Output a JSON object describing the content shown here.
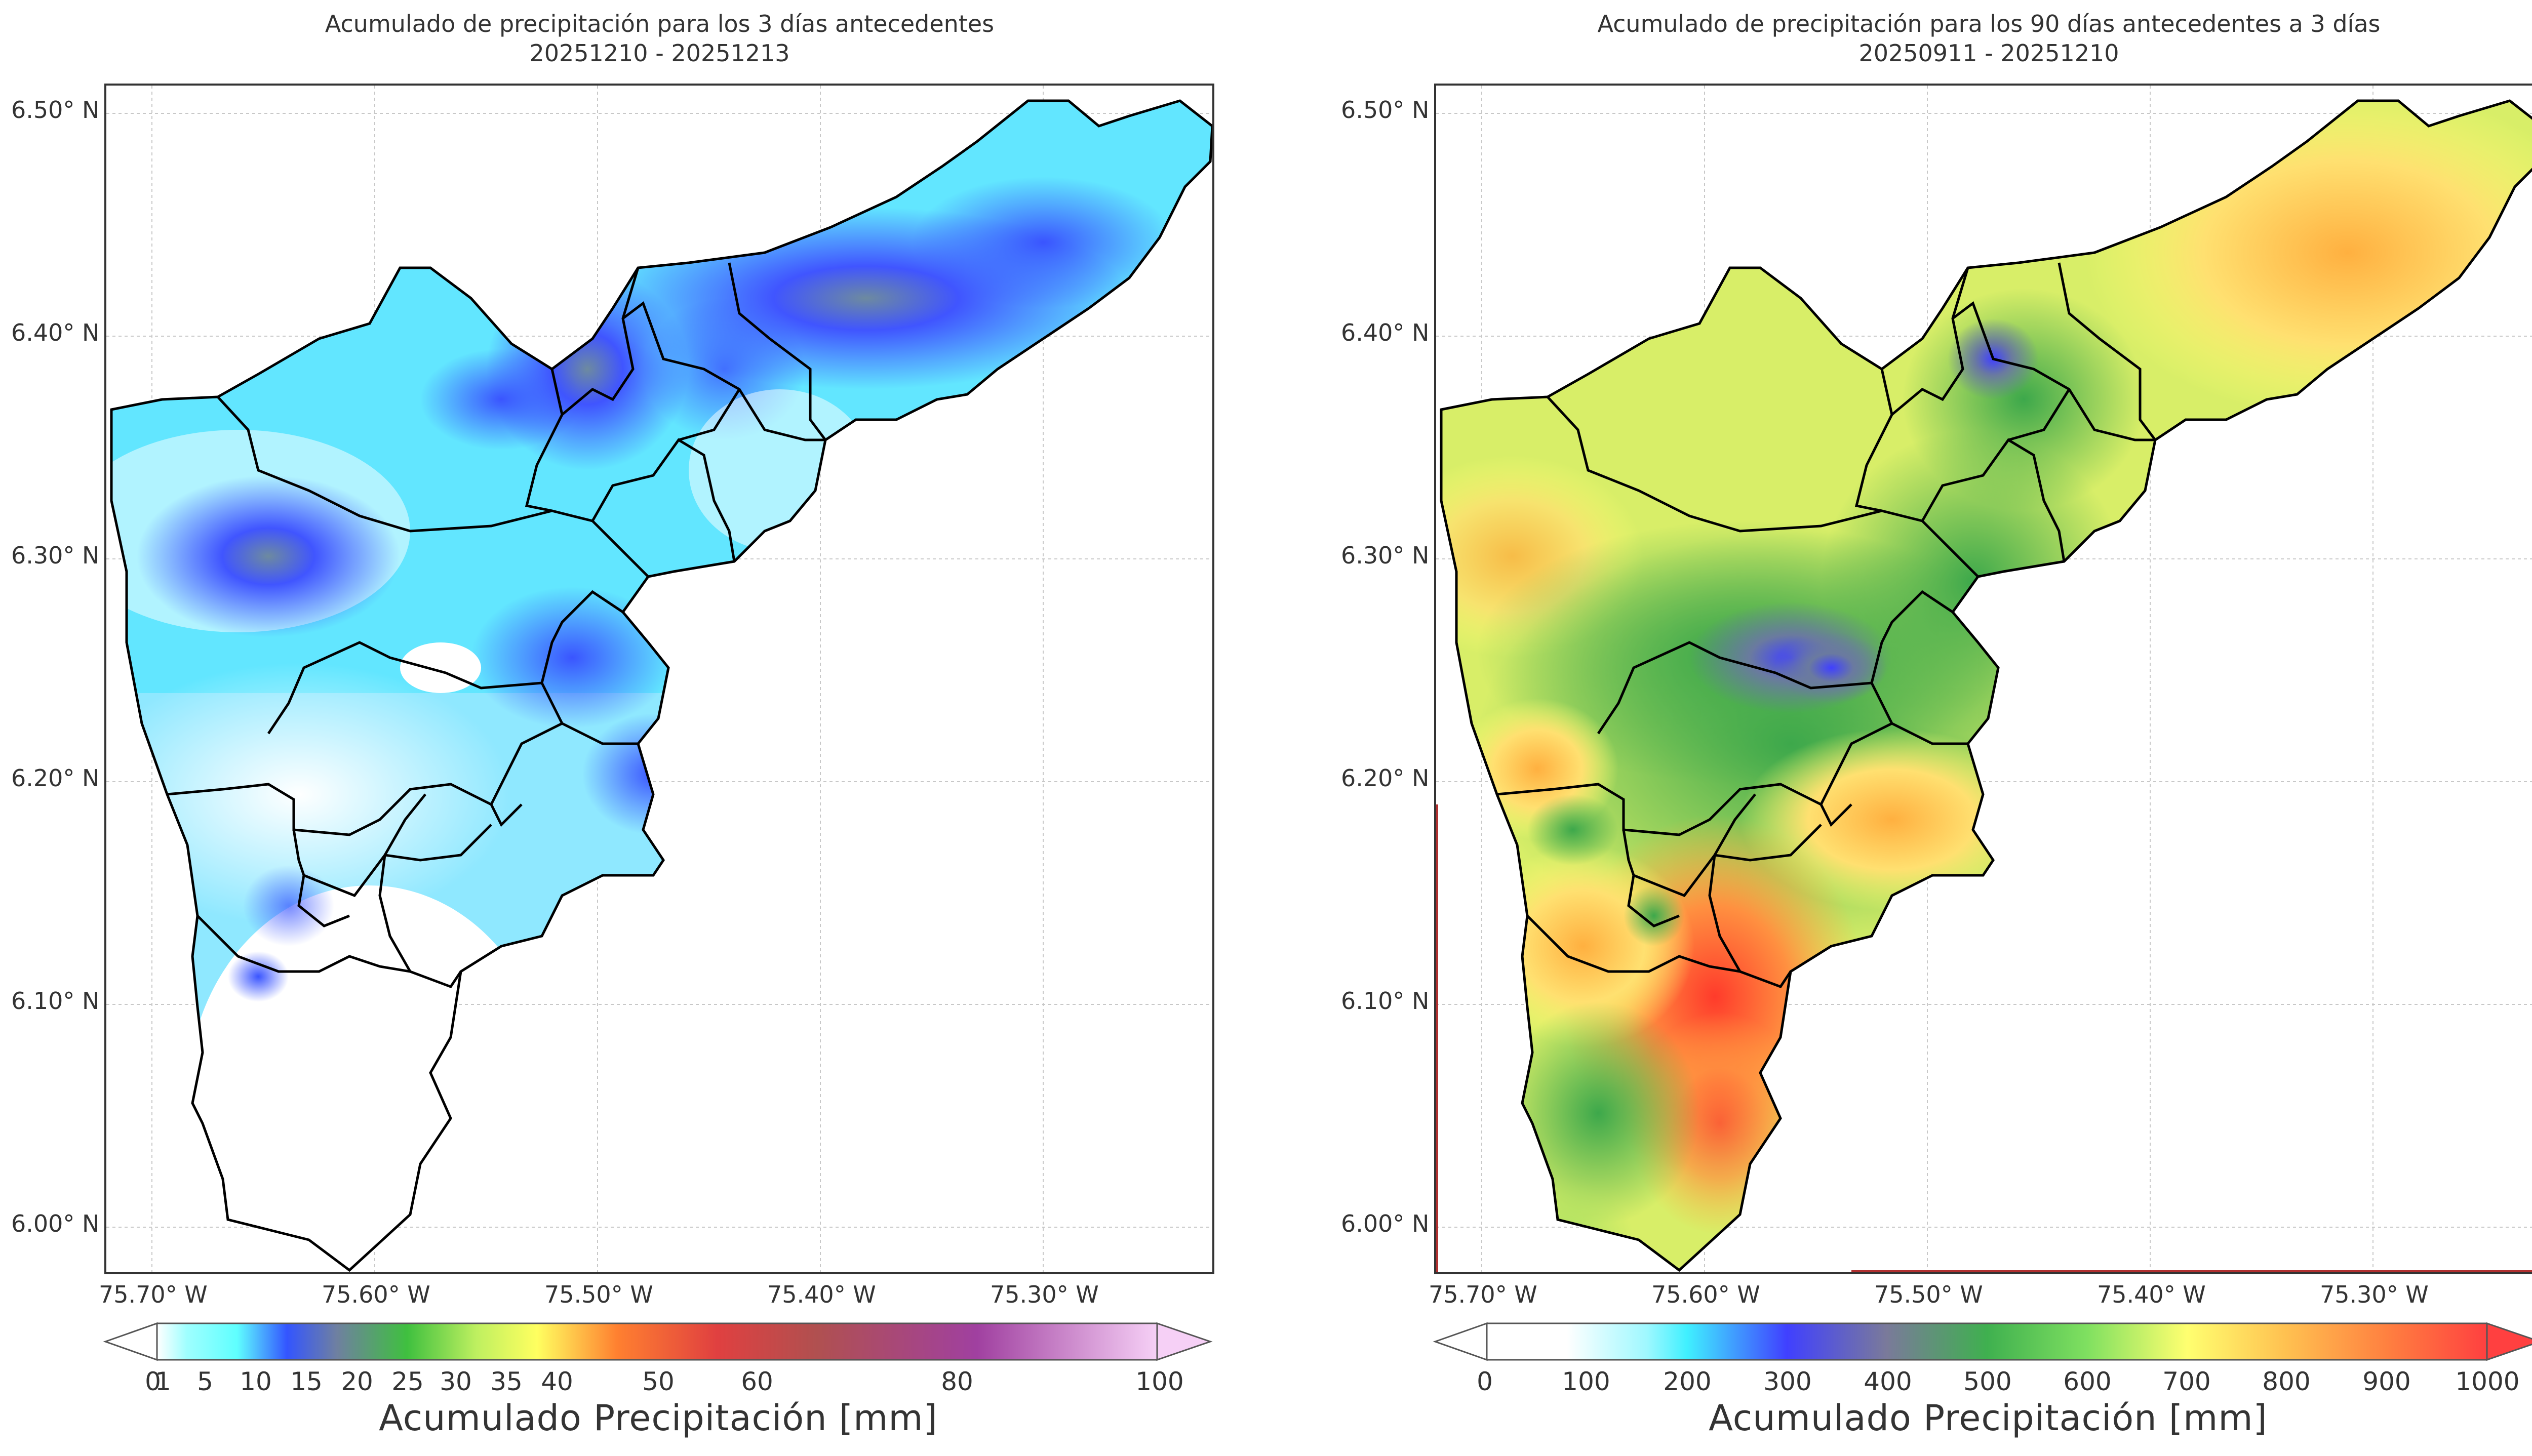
{
  "maps": [
    {
      "title_line1": "Acumulado de precipitación para los 3 días antecedentes",
      "title_line2": "20251210 - 20251213",
      "lat_labels": [
        "6.50° N",
        "6.40° N",
        "6.30° N",
        "6.20° N",
        "6.10° N",
        "6.00° N"
      ],
      "lon_labels": [
        "75.70° W",
        "75.60° W",
        "75.50° W",
        "75.40° W",
        "75.30° W"
      ],
      "colorbar": {
        "label": "Acumulado Precipitación [mm]",
        "ticks": [
          "0",
          "1",
          "5",
          "10",
          "15",
          "20",
          "25",
          "30",
          "35",
          "40",
          "50",
          "60",
          "80",
          "100"
        ],
        "colors": [
          "#ffffff",
          "#5fffff",
          "#3355ff",
          "#6f80a0",
          "#3fc03f",
          "#ffff60",
          "#ff8030",
          "#e04040",
          "#b05080",
          "#a040a0",
          "#f6d0f6"
        ]
      },
      "features": [
        "Precipitation maximum NE sector",
        "Precipitation maximum W sector",
        "Low values S sector"
      ]
    },
    {
      "title_line1": "Acumulado de precipitación para los 90 días antecedentes a 3 días",
      "title_line2": "20250911 - 20251210",
      "lat_labels": [
        "6.50° N",
        "6.40° N",
        "6.30° N",
        "6.20° N",
        "6.10° N",
        "6.00° N"
      ],
      "lon_labels": [
        "75.70° W",
        "75.60° W",
        "75.50° W",
        "75.40° W",
        "75.30° W"
      ],
      "colorbar": {
        "label": "Acumulado Precipitación [mm]",
        "ticks": [
          "0",
          "100",
          "200",
          "300",
          "400",
          "500",
          "600",
          "700",
          "800",
          "900",
          "1000"
        ],
        "colors": [
          "#ffffff",
          "#ffffff",
          "#40f0ff",
          "#4040ff",
          "#7a7a9a",
          "#3fb04f",
          "#7fe060",
          "#ffff70",
          "#ffb040",
          "#ff4040"
        ]
      },
      "features": [
        "Maximum SW sector",
        "Blue cell north-central",
        "Green center"
      ]
    }
  ]
}
